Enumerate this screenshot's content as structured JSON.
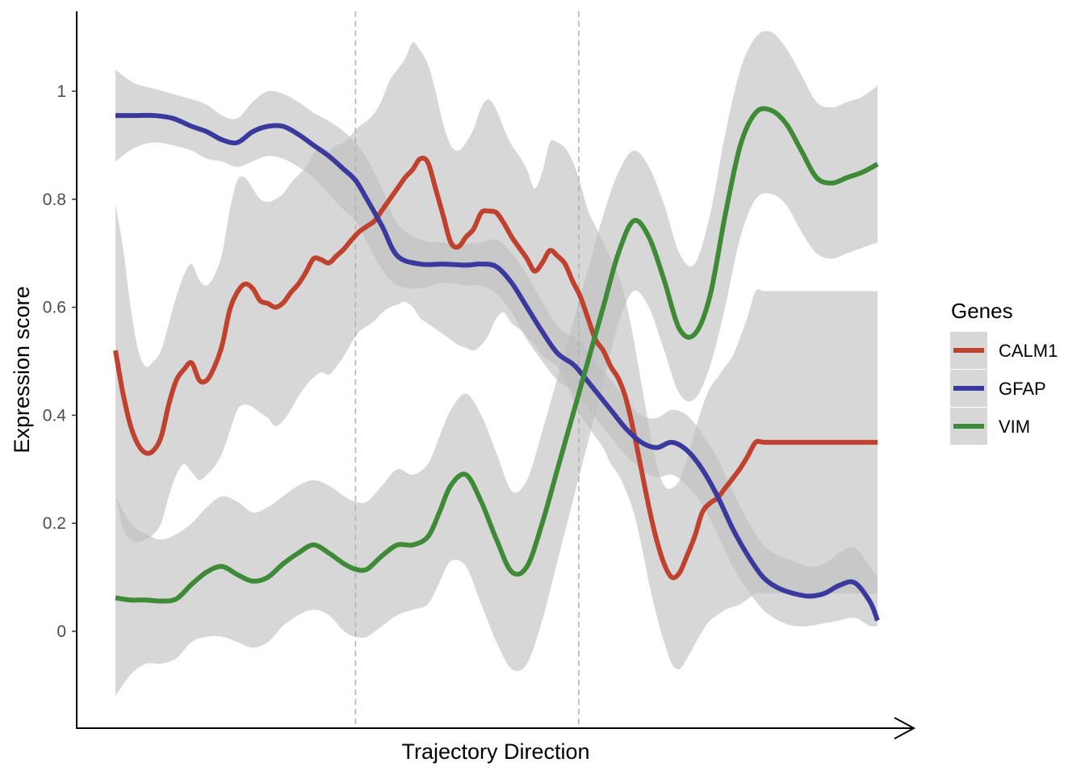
{
  "chart_data": {
    "type": "line",
    "title": "",
    "xlabel": "Trajectory Direction",
    "ylabel": "Expression score",
    "xlim": [
      0,
      100
    ],
    "ylim": [
      -0.17,
      1.14
    ],
    "yticks": [
      0,
      0.2,
      0.4,
      0.6,
      0.8,
      1
    ],
    "ytick_labels": [
      "0",
      "0.2",
      "0.4",
      "0.6",
      "0.8",
      "1"
    ],
    "vlines": [
      31.5,
      60.8
    ],
    "grid": false,
    "legend": {
      "title": "Genes",
      "position": "right"
    },
    "band_color": "#bebebe",
    "series": [
      {
        "name": "CALM1",
        "color": "#c0422e",
        "x": [
          0,
          1,
          2,
          3,
          4,
          5,
          6,
          7,
          8,
          9,
          10,
          11,
          12,
          13,
          14,
          15,
          16,
          17,
          18,
          19,
          20,
          21,
          22,
          23,
          24,
          25,
          26,
          27,
          28,
          29,
          30,
          31,
          32,
          33,
          34,
          35,
          36,
          37,
          38,
          39,
          40,
          41,
          42,
          43,
          44,
          45,
          46,
          47,
          48,
          49,
          50,
          51,
          52,
          53,
          54,
          55,
          56,
          57,
          58,
          59,
          60,
          61,
          62,
          63,
          64,
          65,
          66,
          67,
          68,
          69,
          70,
          71,
          72,
          73,
          74,
          75,
          76,
          77,
          78,
          79,
          80,
          81,
          82,
          83,
          84,
          85,
          86,
          87,
          88,
          89,
          90,
          91,
          92,
          93,
          94,
          95,
          96,
          97,
          98,
          99,
          100
        ],
        "y": [
          0.52,
          0.44,
          0.38,
          0.345,
          0.33,
          0.335,
          0.36,
          0.42,
          0.465,
          0.485,
          0.497,
          0.465,
          0.465,
          0.49,
          0.53,
          0.595,
          0.628,
          0.643,
          0.635,
          0.612,
          0.607,
          0.6,
          0.608,
          0.627,
          0.643,
          0.665,
          0.69,
          0.688,
          0.682,
          0.695,
          0.708,
          0.725,
          0.74,
          0.75,
          0.76,
          0.78,
          0.8,
          0.82,
          0.84,
          0.855,
          0.875,
          0.868,
          0.82,
          0.77,
          0.72,
          0.712,
          0.73,
          0.745,
          0.775,
          0.778,
          0.775,
          0.755,
          0.73,
          0.71,
          0.69,
          0.667,
          0.682,
          0.705,
          0.695,
          0.68,
          0.648,
          0.62,
          0.58,
          0.54,
          0.52,
          0.49,
          0.468,
          0.43,
          0.37,
          0.3,
          0.23,
          0.17,
          0.125,
          0.1,
          0.108,
          0.14,
          0.175,
          0.22,
          0.237,
          0.247,
          0.265,
          0.283,
          0.302,
          0.325,
          0.35,
          0.35,
          0.35,
          0.35,
          0.35,
          0.35,
          0.35,
          0.35,
          0.35,
          0.35,
          0.35,
          0.35,
          0.35,
          0.35,
          0.35,
          0.35,
          0.35
        ],
        "lower": [
          0.255,
          0.19,
          0.17,
          0.165,
          0.17,
          0.18,
          0.2,
          0.25,
          0.29,
          0.31,
          0.295,
          0.28,
          0.29,
          0.305,
          0.33,
          0.37,
          0.41,
          0.42,
          0.415,
          0.405,
          0.395,
          0.38,
          0.39,
          0.41,
          0.435,
          0.455,
          0.47,
          0.48,
          0.475,
          0.49,
          0.51,
          0.535,
          0.555,
          0.565,
          0.575,
          0.59,
          0.6,
          0.605,
          0.61,
          0.6,
          0.58,
          0.57,
          0.56,
          0.55,
          0.54,
          0.53,
          0.525,
          0.52,
          0.53,
          0.55,
          0.58,
          0.59,
          0.57,
          0.56,
          0.545,
          0.53,
          0.51,
          0.5,
          0.49,
          0.465,
          0.43,
          0.4,
          0.38,
          0.36,
          0.34,
          0.31,
          0.29,
          0.26,
          0.22,
          0.16,
          0.09,
          0.03,
          -0.02,
          -0.06,
          -0.07,
          -0.05,
          -0.025,
          0.0,
          0.02,
          0.03,
          0.04,
          0.045,
          0.05,
          0.06,
          0.07,
          0.07,
          0.07,
          0.07,
          0.07,
          0.07,
          0.07,
          0.07,
          0.07,
          0.07,
          0.07,
          0.07,
          0.07,
          0.07,
          0.07,
          0.07,
          0.07
        ],
        "upper": [
          0.79,
          0.71,
          0.6,
          0.52,
          0.49,
          0.5,
          0.52,
          0.57,
          0.62,
          0.66,
          0.68,
          0.65,
          0.64,
          0.66,
          0.7,
          0.78,
          0.835,
          0.84,
          0.82,
          0.8,
          0.795,
          0.8,
          0.81,
          0.83,
          0.845,
          0.86,
          0.885,
          0.895,
          0.89,
          0.9,
          0.905,
          0.92,
          0.935,
          0.945,
          0.96,
          0.985,
          1.02,
          1.04,
          1.06,
          1.09,
          1.075,
          1.05,
          1.0,
          0.94,
          0.9,
          0.89,
          0.905,
          0.93,
          0.97,
          0.985,
          0.965,
          0.93,
          0.9,
          0.88,
          0.855,
          0.82,
          0.85,
          0.905,
          0.905,
          0.895,
          0.87,
          0.83,
          0.78,
          0.75,
          0.72,
          0.69,
          0.66,
          0.61,
          0.54,
          0.46,
          0.38,
          0.31,
          0.27,
          0.265,
          0.28,
          0.32,
          0.37,
          0.415,
          0.45,
          0.47,
          0.49,
          0.51,
          0.545,
          0.585,
          0.63,
          0.63,
          0.63,
          0.63,
          0.63,
          0.63,
          0.63,
          0.63,
          0.63,
          0.63,
          0.63,
          0.63,
          0.63,
          0.63,
          0.63,
          0.63,
          0.63
        ]
      },
      {
        "name": "GFAP",
        "color": "#3a3a9e",
        "x": [
          0,
          2.5,
          5,
          7.5,
          10,
          12,
          14,
          16,
          18,
          20,
          22,
          24,
          26,
          28,
          30,
          31.5,
          33,
          35,
          37,
          40,
          43,
          46,
          48,
          50,
          52,
          54,
          56,
          58,
          60,
          61,
          63,
          65,
          67,
          69,
          71,
          73,
          75,
          77,
          79,
          81,
          83,
          85,
          87,
          89,
          91,
          93,
          95,
          97,
          99,
          100
        ],
        "y": [
          0.955,
          0.955,
          0.955,
          0.95,
          0.935,
          0.925,
          0.91,
          0.905,
          0.925,
          0.935,
          0.935,
          0.92,
          0.9,
          0.88,
          0.855,
          0.835,
          0.8,
          0.75,
          0.695,
          0.68,
          0.68,
          0.678,
          0.68,
          0.675,
          0.645,
          0.6,
          0.555,
          0.515,
          0.495,
          0.48,
          0.445,
          0.41,
          0.375,
          0.35,
          0.34,
          0.35,
          0.335,
          0.3,
          0.25,
          0.19,
          0.14,
          0.1,
          0.08,
          0.07,
          0.065,
          0.07,
          0.085,
          0.09,
          0.055,
          0.02
        ],
        "lower": [
          0.87,
          0.895,
          0.905,
          0.9,
          0.89,
          0.875,
          0.87,
          0.86,
          0.87,
          0.88,
          0.875,
          0.86,
          0.84,
          0.81,
          0.78,
          0.76,
          0.72,
          0.67,
          0.64,
          0.635,
          0.645,
          0.64,
          0.64,
          0.625,
          0.59,
          0.54,
          0.5,
          0.465,
          0.445,
          0.43,
          0.395,
          0.36,
          0.325,
          0.3,
          0.285,
          0.29,
          0.27,
          0.235,
          0.18,
          0.12,
          0.075,
          0.04,
          0.02,
          0.01,
          0.01,
          0.015,
          0.02,
          0.025,
          0.01,
          0.01
        ],
        "upper": [
          1.04,
          1.015,
          1.005,
          0.995,
          0.985,
          0.975,
          0.955,
          0.95,
          0.98,
          1.0,
          0.995,
          0.98,
          0.96,
          0.945,
          0.925,
          0.905,
          0.875,
          0.82,
          0.755,
          0.725,
          0.72,
          0.718,
          0.72,
          0.725,
          0.7,
          0.66,
          0.61,
          0.565,
          0.545,
          0.535,
          0.5,
          0.465,
          0.43,
          0.4,
          0.395,
          0.41,
          0.4,
          0.365,
          0.32,
          0.26,
          0.205,
          0.16,
          0.14,
          0.13,
          0.12,
          0.125,
          0.145,
          0.155,
          0.12,
          0.1
        ]
      },
      {
        "name": "VIM",
        "color": "#3f8a37",
        "x": [
          0,
          2,
          4,
          6,
          8,
          10,
          12,
          14,
          16,
          18,
          20,
          22,
          24,
          26,
          28,
          30,
          31.5,
          33,
          35,
          37,
          39,
          41,
          42.5,
          44,
          46,
          48,
          50,
          52,
          54,
          56,
          58,
          60,
          62,
          64,
          66,
          68,
          70,
          72,
          74,
          76,
          78,
          80,
          82,
          84,
          86,
          88,
          90,
          92,
          94,
          96,
          98,
          100
        ],
        "y": [
          0.062,
          0.058,
          0.058,
          0.056,
          0.06,
          0.087,
          0.11,
          0.12,
          0.105,
          0.093,
          0.1,
          0.125,
          0.145,
          0.16,
          0.145,
          0.125,
          0.115,
          0.115,
          0.14,
          0.16,
          0.16,
          0.175,
          0.22,
          0.27,
          0.29,
          0.24,
          0.17,
          0.11,
          0.12,
          0.2,
          0.3,
          0.4,
          0.5,
          0.6,
          0.7,
          0.76,
          0.73,
          0.65,
          0.56,
          0.55,
          0.62,
          0.77,
          0.9,
          0.96,
          0.965,
          0.94,
          0.89,
          0.84,
          0.83,
          0.84,
          0.85,
          0.865
        ],
        "lower": [
          -0.12,
          -0.08,
          -0.06,
          -0.06,
          -0.05,
          -0.02,
          -0.01,
          -0.01,
          -0.02,
          -0.03,
          -0.02,
          0.01,
          0.03,
          0.04,
          0.03,
          0.0,
          -0.01,
          -0.01,
          0.01,
          0.03,
          0.04,
          0.05,
          0.09,
          0.13,
          0.12,
          0.05,
          -0.02,
          -0.07,
          -0.06,
          0.02,
          0.13,
          0.24,
          0.35,
          0.46,
          0.57,
          0.63,
          0.6,
          0.52,
          0.44,
          0.43,
          0.49,
          0.6,
          0.73,
          0.8,
          0.81,
          0.79,
          0.74,
          0.7,
          0.69,
          0.7,
          0.71,
          0.72
        ],
        "upper": [
          0.25,
          0.2,
          0.18,
          0.17,
          0.18,
          0.2,
          0.23,
          0.25,
          0.24,
          0.22,
          0.23,
          0.25,
          0.27,
          0.28,
          0.27,
          0.25,
          0.24,
          0.24,
          0.27,
          0.3,
          0.29,
          0.31,
          0.36,
          0.41,
          0.44,
          0.4,
          0.33,
          0.26,
          0.28,
          0.37,
          0.47,
          0.57,
          0.67,
          0.77,
          0.85,
          0.89,
          0.86,
          0.79,
          0.7,
          0.68,
          0.77,
          0.92,
          1.04,
          1.1,
          1.11,
          1.08,
          1.03,
          0.98,
          0.97,
          0.98,
          0.99,
          1.01
        ]
      }
    ]
  }
}
